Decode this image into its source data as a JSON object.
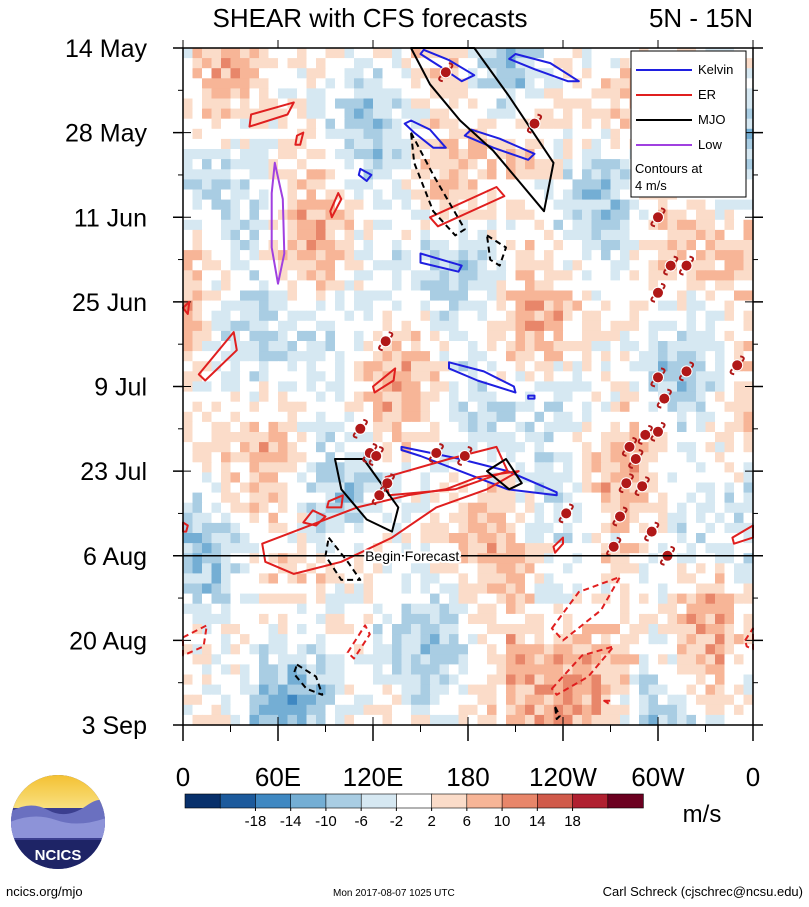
{
  "title": "SHEAR with CFS forecasts",
  "lat_band": "5N - 15N",
  "legend": {
    "items": [
      {
        "label": "Kelvin",
        "color": "#1f1fe0"
      },
      {
        "label": "ER",
        "color": "#e01f1f"
      },
      {
        "label": "MJO",
        "color": "#000000"
      },
      {
        "label": "Low",
        "color": "#a040e0"
      }
    ],
    "note_line1": "Contours at",
    "note_line2": "4 m/s"
  },
  "forecast_label": "Begin Forecast",
  "units": "m/s",
  "logo_text": "NCICS",
  "footer": {
    "left": "ncics.org/mjo",
    "mid": "Mon 2017-08-07 1025 UTC",
    "right": "Carl Schreck (cjschrec@ncsu.edu)"
  },
  "chart_data": {
    "type": "heatmap",
    "title": "SHEAR with CFS forecasts",
    "x_tick_labels": [
      "0",
      "60E",
      "120E",
      "180",
      "120W",
      "60W",
      "0"
    ],
    "x_ticks_deg": [
      0,
      60,
      120,
      180,
      240,
      300,
      360
    ],
    "xlim_deg": [
      0,
      360
    ],
    "y_tick_labels": [
      "14 May",
      "28 May",
      "11 Jun",
      "25 Jun",
      "9 Jul",
      "23 Jul",
      "6 Aug",
      "20 Aug",
      "3 Sep"
    ],
    "y_ticks_day": [
      0,
      14,
      28,
      42,
      56,
      70,
      84,
      98,
      112
    ],
    "ylim_day": [
      0,
      112
    ],
    "forecast_start_day": 84,
    "colorbar": {
      "labels": [
        "-18",
        "-14",
        "-10",
        "-6",
        "-2",
        "2",
        "6",
        "10",
        "14",
        "18"
      ],
      "colors": [
        "#08306b",
        "#1c5a9c",
        "#3f88c2",
        "#74aed4",
        "#a9cde3",
        "#d6e8f2",
        "#ffffff",
        "#fbdcc9",
        "#f7b597",
        "#e8866a",
        "#d05a4a",
        "#b02030",
        "#6b0020"
      ]
    },
    "contours": [
      {
        "wave": "Kelvin",
        "polygons": [
          [
            [
              152,
              0.3
            ],
            [
              168,
              2
            ],
            [
              184,
              4.5
            ],
            [
              176,
              5.5
            ],
            [
              162,
              3
            ],
            [
              150,
              1
            ]
          ],
          [
            [
              210,
              1
            ],
            [
              232,
              2.5
            ],
            [
              250,
              5.5
            ],
            [
              243,
              5.5
            ],
            [
              222,
              3.5
            ],
            [
              206,
              1.8
            ]
          ],
          [
            [
              144,
              12
            ],
            [
              156,
              13.5
            ],
            [
              166,
              16.5
            ],
            [
              158,
              16.5
            ],
            [
              146,
              14
            ],
            [
              140,
              12.5
            ]
          ],
          [
            [
              182,
              13.5
            ],
            [
              200,
              15
            ],
            [
              222,
              17.5
            ],
            [
              218,
              18.5
            ],
            [
              196,
              16.5
            ],
            [
              178,
              14.5
            ]
          ],
          [
            [
              112,
              20
            ],
            [
              119,
              21
            ],
            [
              116,
              22
            ],
            [
              111,
              21
            ]
          ],
          [
            [
              150,
              34
            ],
            [
              176,
              36
            ],
            [
              174,
              37
            ],
            [
              150,
              35.5
            ]
          ],
          [
            [
              168,
              52
            ],
            [
              190,
              53.5
            ],
            [
              209,
              56
            ],
            [
              210,
              57
            ],
            [
              186,
              55
            ],
            [
              168,
              53
            ]
          ],
          [
            [
              138,
              66
            ],
            [
              175,
              68
            ],
            [
              205,
              70
            ],
            [
              236,
              73.5
            ],
            [
              236,
              74
            ],
            [
              205,
              73
            ],
            [
              175,
              70
            ],
            [
              150,
              67.5
            ],
            [
              138,
              66.5
            ]
          ],
          [
            [
              218,
              57.5
            ],
            [
              222,
              57.5
            ],
            [
              222,
              58
            ],
            [
              218,
              58
            ]
          ]
        ]
      },
      {
        "wave": "ER",
        "polygons": [
          [
            [
              43,
              11
            ],
            [
              70,
              9
            ],
            [
              66,
              11
            ],
            [
              42,
              13
            ]
          ],
          [
            [
              72,
              14.5
            ],
            [
              76,
              14
            ],
            [
              74,
              16
            ],
            [
              71,
              16
            ]
          ],
          [
            [
              93,
              27
            ],
            [
              98,
              24
            ],
            [
              100,
              25
            ],
            [
              94,
              28
            ]
          ],
          [
            [
              156,
              28
            ],
            [
              198,
              23
            ],
            [
              203,
              24.5
            ],
            [
              161,
              29.5
            ]
          ],
          [
            [
              0,
              43
            ],
            [
              4,
              42
            ],
            [
              3,
              44
            ]
          ],
          [
            [
              10,
              54
            ],
            [
              32,
              47
            ],
            [
              34,
              50
            ],
            [
              14,
              55
            ]
          ],
          [
            [
              120,
              56
            ],
            [
              134,
              53
            ],
            [
              133,
              55
            ],
            [
              121,
              57
            ]
          ],
          [
            [
              92,
              75
            ],
            [
              101,
              74
            ],
            [
              100,
              76
            ],
            [
              91,
              76
            ]
          ],
          [
            [
              82,
              76.5
            ],
            [
              90,
              77.5
            ],
            [
              84,
              79
            ],
            [
              76,
              78.5
            ]
          ],
          [
            [
              0,
              78.5
            ],
            [
              3,
              79
            ],
            [
              2,
              80
            ],
            [
              0,
              80
            ]
          ],
          [
            [
              50,
              82
            ],
            [
              110,
              76
            ],
            [
              142,
              74
            ],
            [
              166,
              73
            ],
            [
              186,
              71
            ],
            [
              212,
              70
            ],
            [
              192,
              73
            ],
            [
              160,
              76
            ],
            [
              132,
              81
            ],
            [
              100,
              85
            ],
            [
              70,
              87
            ],
            [
              52,
              85
            ]
          ],
          [
            [
              128,
              71
            ],
            [
              168,
              68
            ],
            [
              198,
              66
            ],
            [
              205,
              70
            ],
            [
              172,
              73
            ],
            [
              130,
              74
            ]
          ],
          [
            [
              234,
              82.5
            ],
            [
              240,
              81
            ],
            [
              240,
              82
            ],
            [
              235,
              83.5
            ]
          ],
          [
            [
              233,
              96
            ],
            [
              250,
              90
            ],
            [
              276,
              87.5
            ],
            [
              264,
              93
            ],
            [
              240,
              98
            ]
          ],
          [
            [
              233,
              106
            ],
            [
              252,
              100.5
            ],
            [
              272,
              99
            ],
            [
              256,
              104
            ],
            [
              236,
              107
            ]
          ],
          [
            [
              347,
              81
            ],
            [
              360,
              79
            ],
            [
              360,
              81
            ],
            [
              348,
              82
            ]
          ],
          [
            [
              0,
              97.5
            ],
            [
              15,
              95.5
            ],
            [
              13,
              99
            ],
            [
              0,
              100.5
            ]
          ],
          [
            [
              104,
              100
            ],
            [
              115,
              95.5
            ],
            [
              118,
              97
            ],
            [
              108,
              101
            ]
          ],
          [
            [
              355,
              98
            ],
            [
              360,
              96
            ],
            [
              360,
              99.5
            ],
            [
              356,
              99
            ]
          ],
          [
            [
              266,
              108
            ],
            [
              270,
              108
            ],
            [
              269,
              108.5
            ]
          ]
        ]
      },
      {
        "wave": "MJO",
        "polygons": [
          [
            [
              144,
              0
            ],
            [
              184,
              0
            ],
            [
              206,
              8
            ],
            [
              234,
              19
            ],
            [
              228,
              27
            ],
            [
              212,
              22
            ],
            [
              196,
              17
            ],
            [
              175,
              12
            ],
            [
              156,
              6
            ],
            [
              144,
              0
            ]
          ],
          [
            [
              192,
              70
            ],
            [
              204,
              68
            ],
            [
              214,
              72
            ],
            [
              206,
              73
            ]
          ],
          [
            [
              96,
              68
            ],
            [
              114,
              68
            ],
            [
              136,
              76
            ],
            [
              132,
              80
            ],
            [
              116,
              78
            ],
            [
              100,
              73
            ]
          ],
          [
            [
              144,
              14
            ],
            [
              158,
              21
            ],
            [
              178,
              30
            ],
            [
              172,
              31
            ],
            [
              158,
              27
            ],
            [
              146,
              19
            ]
          ],
          [
            [
              192,
              31
            ],
            [
              204,
              33
            ],
            [
              200,
              36
            ],
            [
              194,
              35
            ]
          ],
          [
            [
              92,
              81
            ],
            [
              104,
              85
            ],
            [
              112,
              88
            ],
            [
              100,
              88
            ],
            [
              90,
              84
            ]
          ],
          [
            [
              72,
              102
            ],
            [
              84,
              104
            ],
            [
              88,
              107
            ],
            [
              78,
              106
            ],
            [
              70,
              103.5
            ]
          ],
          [
            [
              235,
              109
            ],
            [
              238,
              110.5
            ],
            [
              236,
              111
            ]
          ]
        ]
      },
      {
        "wave": "Low",
        "polygons": [
          [
            [
              58,
              19
            ],
            [
              63,
              25
            ],
            [
              64,
              34
            ],
            [
              60,
              39
            ],
            [
              56,
              33
            ],
            [
              56,
              24
            ]
          ]
        ]
      }
    ]
  }
}
